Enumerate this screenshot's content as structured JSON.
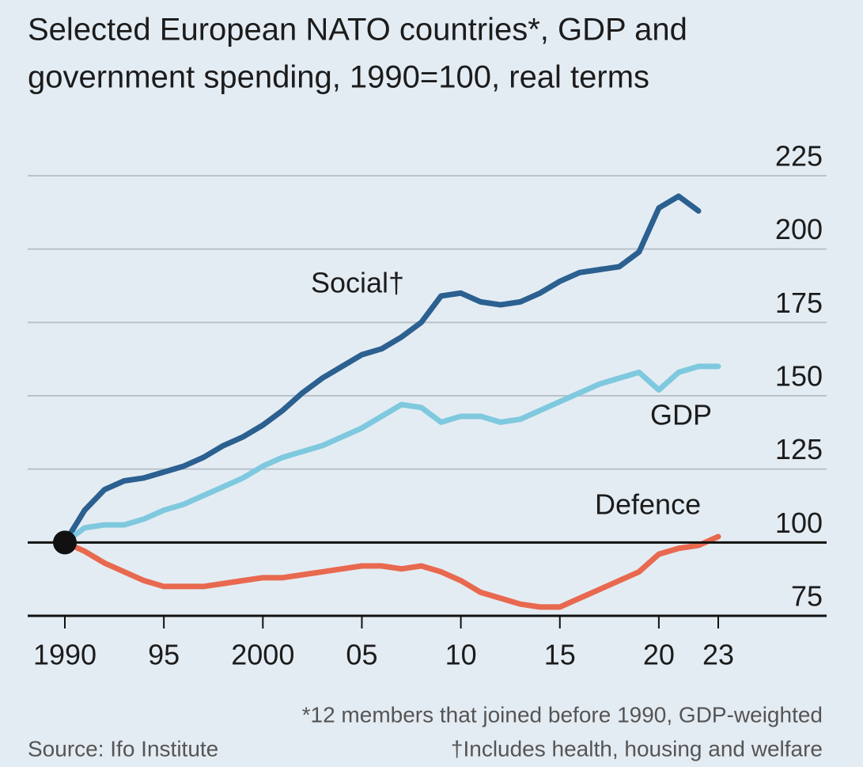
{
  "chart_data": {
    "type": "line",
    "title": [
      "Selected European NATO countries*, GDP and",
      "government spending, 1990=100, real terms"
    ],
    "x": [
      1990,
      1991,
      1992,
      1993,
      1994,
      1995,
      1996,
      1997,
      1998,
      1999,
      2000,
      2001,
      2002,
      2003,
      2004,
      2005,
      2006,
      2007,
      2008,
      2009,
      2010,
      2011,
      2012,
      2013,
      2014,
      2015,
      2016,
      2017,
      2018,
      2019,
      2020,
      2021,
      2022,
      2023
    ],
    "series": [
      {
        "name": "Social†",
        "color": "#2b6090",
        "values": [
          100,
          111,
          118,
          121,
          122,
          124,
          126,
          129,
          133,
          136,
          140,
          145,
          151,
          156,
          160,
          164,
          166,
          170,
          175,
          184,
          185,
          182,
          181,
          182,
          185,
          189,
          192,
          193,
          194,
          199,
          214,
          218,
          213,
          null
        ]
      },
      {
        "name": "GDP",
        "color": "#7fc9df",
        "values": [
          100,
          105,
          106,
          106,
          108,
          111,
          113,
          116,
          119,
          122,
          126,
          129,
          131,
          133,
          136,
          139,
          143,
          147,
          146,
          141,
          143,
          143,
          141,
          142,
          145,
          148,
          151,
          154,
          156,
          158,
          152,
          158,
          160,
          160
        ]
      },
      {
        "name": "Defence",
        "color": "#e8694f",
        "values": [
          100,
          97,
          93,
          90,
          87,
          85,
          85,
          85,
          86,
          87,
          88,
          88,
          89,
          90,
          91,
          92,
          92,
          91,
          92,
          90,
          87,
          83,
          81,
          79,
          78,
          78,
          81,
          84,
          87,
          90,
          96,
          98,
          99,
          102
        ]
      }
    ],
    "xlim": [
      1990,
      2023
    ],
    "xticks": [
      1990,
      {
        "value": 1995,
        "label": "95"
      },
      2000,
      {
        "value": 2005,
        "label": "05"
      },
      {
        "value": 2010,
        "label": "10"
      },
      {
        "value": 2015,
        "label": "15"
      },
      {
        "value": 2020,
        "label": "20"
      },
      {
        "value": 2023,
        "label": "23"
      }
    ],
    "ylim": [
      75,
      225
    ],
    "yticks": [
      75,
      100,
      125,
      150,
      175,
      200,
      225
    ],
    "reference_line": 100,
    "grid": true,
    "footnotes": [
      "*12 members that joined before 1990, GDP-weighted",
      "Source: Ifo Institute",
      "†Includes health, housing and welfare"
    ]
  }
}
